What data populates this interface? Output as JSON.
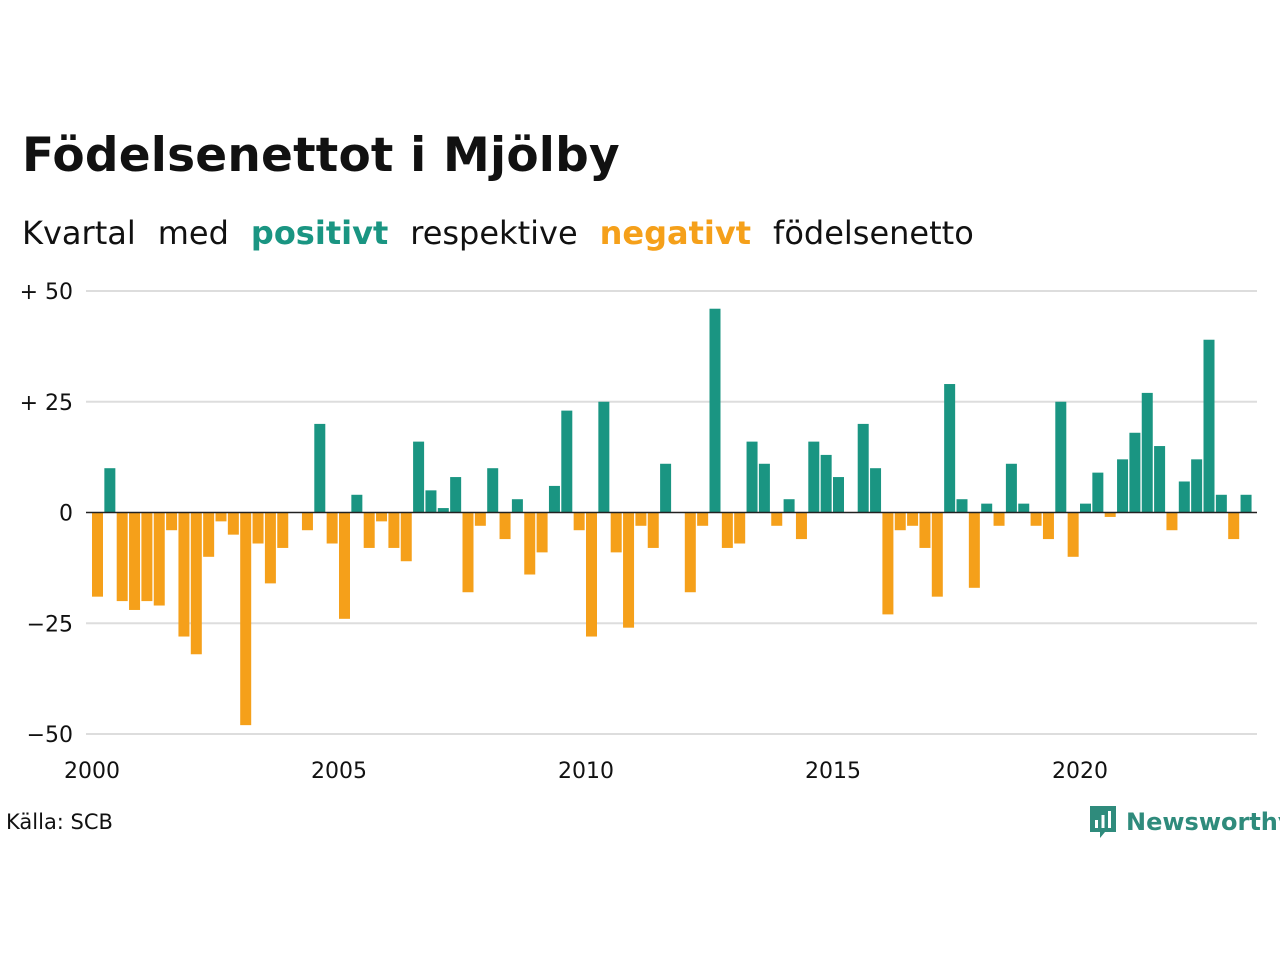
{
  "title": "Födelsenettot i Mjölby",
  "subtitle": {
    "part1": "Kvartal",
    "part2": "med",
    "positive": "positivt",
    "part3": "respektive",
    "negative": "negativt",
    "part4": "födelsenetto"
  },
  "source": "Källa: SCB",
  "brand": "Newsworthy",
  "colors": {
    "positive": "#1a9582",
    "negative": "#f5a01a",
    "grid": "#dddddd",
    "axis": "#222222"
  },
  "chart_data": {
    "type": "bar",
    "title": "Födelsenettot i Mjölby",
    "subtitle": "Kvartal med positivt respektive negativt födelsenetto",
    "x_start": "2000 Q1",
    "x_end": "2023 Q2",
    "x_ticks": [
      {
        "year": 2000,
        "label": "2000"
      },
      {
        "year": 2005,
        "label": "2005"
      },
      {
        "year": 2010,
        "label": "2010"
      },
      {
        "year": 2015,
        "label": "2015"
      },
      {
        "year": 2020,
        "label": "2020"
      }
    ],
    "y_ticks": [
      {
        "value": 50,
        "label": "+ 50"
      },
      {
        "value": 25,
        "label": "+ 25"
      },
      {
        "value": 0,
        "label": "0"
      },
      {
        "value": -25,
        "label": "−25"
      },
      {
        "value": -50,
        "label": "−50"
      }
    ],
    "ylim": [
      -50,
      50
    ],
    "grid": true,
    "categories": [
      "2000 Q1",
      "2000 Q2",
      "2000 Q3",
      "2000 Q4",
      "2001 Q1",
      "2001 Q2",
      "2001 Q3",
      "2001 Q4",
      "2002 Q1",
      "2002 Q2",
      "2002 Q3",
      "2002 Q4",
      "2003 Q1",
      "2003 Q2",
      "2003 Q3",
      "2003 Q4",
      "2004 Q1",
      "2004 Q2",
      "2004 Q3",
      "2004 Q4",
      "2005 Q1",
      "2005 Q2",
      "2005 Q3",
      "2005 Q4",
      "2006 Q1",
      "2006 Q2",
      "2006 Q3",
      "2006 Q4",
      "2007 Q1",
      "2007 Q2",
      "2007 Q3",
      "2007 Q4",
      "2008 Q1",
      "2008 Q2",
      "2008 Q3",
      "2008 Q4",
      "2009 Q1",
      "2009 Q2",
      "2009 Q3",
      "2009 Q4",
      "2010 Q1",
      "2010 Q2",
      "2010 Q3",
      "2010 Q4",
      "2011 Q1",
      "2011 Q2",
      "2011 Q3",
      "2011 Q4",
      "2012 Q1",
      "2012 Q2",
      "2012 Q3",
      "2012 Q4",
      "2013 Q1",
      "2013 Q2",
      "2013 Q3",
      "2013 Q4",
      "2014 Q1",
      "2014 Q2",
      "2014 Q3",
      "2014 Q4",
      "2015 Q1",
      "2015 Q2",
      "2015 Q3",
      "2015 Q4",
      "2016 Q1",
      "2016 Q2",
      "2016 Q3",
      "2016 Q4",
      "2017 Q1",
      "2017 Q2",
      "2017 Q3",
      "2017 Q4",
      "2018 Q1",
      "2018 Q2",
      "2018 Q3",
      "2018 Q4",
      "2019 Q1",
      "2019 Q2",
      "2019 Q3",
      "2019 Q4",
      "2020 Q1",
      "2020 Q2",
      "2020 Q3",
      "2020 Q4",
      "2021 Q1",
      "2021 Q2",
      "2021 Q3",
      "2021 Q4",
      "2022 Q1",
      "2022 Q2",
      "2022 Q3",
      "2022 Q4",
      "2023 Q1",
      "2023 Q2"
    ],
    "values": [
      -19,
      10,
      -20,
      -22,
      -20,
      -21,
      -4,
      -28,
      -32,
      -10,
      -2,
      -5,
      -48,
      -7,
      -16,
      -8,
      0,
      -4,
      20,
      -7,
      -24,
      4,
      -8,
      -2,
      -8,
      -11,
      16,
      5,
      1,
      8,
      -18,
      -3,
      10,
      -6,
      3,
      -14,
      -9,
      6,
      23,
      -4,
      -28,
      25,
      -9,
      -26,
      -3,
      -8,
      11,
      0,
      -18,
      -3,
      46,
      -8,
      -7,
      16,
      11,
      -3,
      3,
      -6,
      16,
      13,
      8,
      0,
      20,
      10,
      -23,
      -4,
      -3,
      -8,
      -19,
      29,
      3,
      -17,
      2,
      -3,
      11,
      2,
      -3,
      -6,
      25,
      -10,
      2,
      9,
      -1,
      12,
      18,
      27,
      15,
      -4,
      7,
      12,
      39,
      4,
      -6,
      4
    ]
  }
}
